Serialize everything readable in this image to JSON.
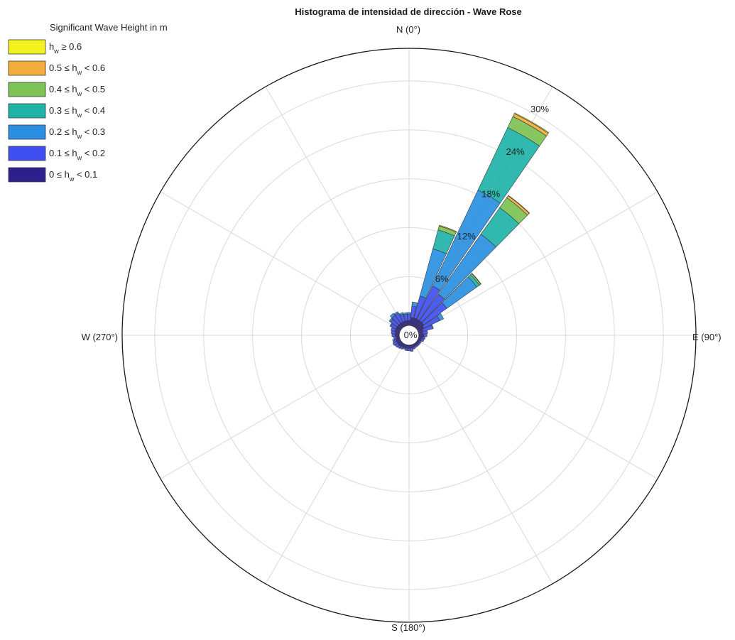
{
  "chart_data": {
    "type": "polar-stacked-histogram",
    "title": "Histograma de intensidad de dirección - Wave Rose",
    "legend": {
      "title": "Significant Wave Height in m",
      "placement": "top-left",
      "entries": [
        {
          "prefix": "h",
          "sub": "w",
          "suffix": " ≥ 0.6",
          "color": "#f2f21f"
        },
        {
          "prefix": "0.5 ≤ h",
          "sub": "w",
          "suffix": " < 0.6",
          "color": "#f4ad3c"
        },
        {
          "prefix": "0.4 ≤ h",
          "sub": "w",
          "suffix": " < 0.5",
          "color": "#7cc254"
        },
        {
          "prefix": "0.3 ≤ h",
          "sub": "w",
          "suffix": " < 0.4",
          "color": "#1fb3a8"
        },
        {
          "prefix": "0.2 ≤ h",
          "sub": "w",
          "suffix": " < 0.3",
          "color": "#2a8fe0"
        },
        {
          "prefix": "0.1 ≤ h",
          "sub": "w",
          "suffix": " < 0.2",
          "color": "#3f4ff0"
        },
        {
          "prefix": "0 ≤ h",
          "sub": "w",
          "suffix": " < 0.1",
          "color": "#2d1f8c"
        }
      ]
    },
    "cardinals": {
      "n": "N (0°)",
      "e": "E (90°)",
      "s": "S (180°)",
      "w": "W (270°)"
    },
    "ring_labels": [
      "0%",
      "6%",
      "12%",
      "18%",
      "24%",
      "30%"
    ],
    "radial_ticks": [
      6,
      12,
      18,
      24,
      30
    ],
    "inner_offset": 1.2,
    "rmax": 34,
    "ring_label_angle_deg": 30,
    "spoke_step_deg": 30,
    "grid": true,
    "bin_width_deg": 10,
    "bin_order": [
      "0 ≤ hw < 0.1",
      "0.1 ≤ hw < 0.2",
      "0.2 ≤ hw < 0.3",
      "0.3 ≤ hw < 0.4",
      "0.4 ≤ hw < 0.5",
      "0.5 ≤ hw < 0.6",
      "hw ≥ 0.6"
    ],
    "sectors": [
      {
        "dir": 0,
        "values": [
          0.6,
          0.8,
          0.2,
          0,
          0,
          0,
          0
        ]
      },
      {
        "dir": 10,
        "values": [
          1.0,
          1.4,
          0.5,
          0,
          0,
          0,
          0
        ]
      },
      {
        "dir": 20,
        "values": [
          1.0,
          2.8,
          6.0,
          2.4,
          0.5,
          0.1,
          0
        ]
      },
      {
        "dir": 30,
        "values": [
          1.0,
          4.5,
          13.0,
          8.5,
          1.5,
          0.4,
          0.1
        ]
      },
      {
        "dir": 40,
        "values": [
          1.0,
          4.0,
          9.0,
          4.0,
          1.5,
          0.3,
          0.05
        ]
      },
      {
        "dir": 50,
        "values": [
          1.0,
          3.5,
          4.5,
          0.4,
          0.2,
          0.05,
          0
        ]
      },
      {
        "dir": 60,
        "values": [
          0.8,
          2.2,
          0.5,
          0,
          0,
          0,
          0
        ]
      },
      {
        "dir": 70,
        "values": [
          0.6,
          1.2,
          0.1,
          0,
          0,
          0,
          0
        ]
      },
      {
        "dir": 80,
        "values": [
          0.5,
          0.6,
          0,
          0,
          0,
          0,
          0
        ]
      },
      {
        "dir": 90,
        "values": [
          0.6,
          0.4,
          0,
          0,
          0,
          0,
          0
        ]
      },
      {
        "dir": 100,
        "values": [
          0.5,
          0.3,
          0,
          0,
          0,
          0,
          0
        ]
      },
      {
        "dir": 110,
        "values": [
          0.4,
          0.3,
          0,
          0,
          0,
          0,
          0
        ]
      },
      {
        "dir": 120,
        "values": [
          0.3,
          0.2,
          0,
          0,
          0,
          0,
          0
        ]
      },
      {
        "dir": 130,
        "values": [
          0.3,
          0.2,
          0,
          0,
          0,
          0,
          0
        ]
      },
      {
        "dir": 140,
        "values": [
          0.3,
          0.2,
          0,
          0,
          0,
          0,
          0
        ]
      },
      {
        "dir": 150,
        "values": [
          0.3,
          0.2,
          0,
          0,
          0,
          0,
          0
        ]
      },
      {
        "dir": 160,
        "values": [
          0.4,
          0.2,
          0,
          0,
          0,
          0,
          0
        ]
      },
      {
        "dir": 170,
        "values": [
          0.4,
          0.4,
          0,
          0,
          0,
          0,
          0
        ]
      },
      {
        "dir": 180,
        "values": [
          0.4,
          0.3,
          0,
          0,
          0,
          0,
          0
        ]
      },
      {
        "dir": 190,
        "values": [
          0.4,
          0.3,
          0,
          0,
          0,
          0,
          0
        ]
      },
      {
        "dir": 200,
        "values": [
          0.4,
          0.2,
          0,
          0,
          0,
          0,
          0
        ]
      },
      {
        "dir": 210,
        "values": [
          0.4,
          0.3,
          0,
          0,
          0,
          0,
          0
        ]
      },
      {
        "dir": 220,
        "values": [
          0.5,
          0.3,
          0,
          0,
          0,
          0,
          0
        ]
      },
      {
        "dir": 230,
        "values": [
          0.5,
          0.4,
          0,
          0,
          0,
          0,
          0
        ]
      },
      {
        "dir": 240,
        "values": [
          0.5,
          0.5,
          0,
          0,
          0,
          0,
          0
        ]
      },
      {
        "dir": 250,
        "values": [
          0.5,
          0.4,
          0,
          0,
          0,
          0,
          0
        ]
      },
      {
        "dir": 260,
        "values": [
          0.4,
          0.3,
          0,
          0,
          0,
          0,
          0
        ]
      },
      {
        "dir": 270,
        "values": [
          0.5,
          0.4,
          0,
          0,
          0,
          0,
          0
        ]
      },
      {
        "dir": 280,
        "values": [
          0.5,
          0.5,
          0,
          0,
          0,
          0,
          0
        ]
      },
      {
        "dir": 290,
        "values": [
          0.6,
          0.5,
          0,
          0,
          0,
          0,
          0
        ]
      },
      {
        "dir": 300,
        "values": [
          0.6,
          0.7,
          0.1,
          0,
          0,
          0,
          0
        ]
      },
      {
        "dir": 310,
        "values": [
          0.6,
          1.0,
          0.2,
          0,
          0,
          0,
          0
        ]
      },
      {
        "dir": 320,
        "values": [
          0.6,
          1.2,
          0.3,
          0,
          0,
          0,
          0
        ]
      },
      {
        "dir": 330,
        "values": [
          0.6,
          1.2,
          0.2,
          0,
          0,
          0,
          0
        ]
      },
      {
        "dir": 340,
        "values": [
          0.6,
          0.9,
          0.2,
          0,
          0,
          0,
          0
        ]
      },
      {
        "dir": 350,
        "values": [
          0.6,
          0.8,
          0.2,
          0,
          0,
          0,
          0
        ]
      }
    ]
  }
}
